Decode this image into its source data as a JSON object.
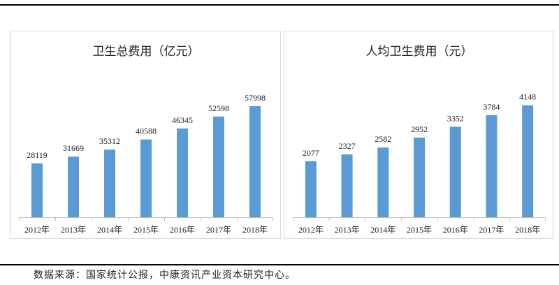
{
  "source_note": "数据来源：国家统计公报，中康资讯产业资本研究中心。",
  "colors": {
    "bar": "#5b9bd5",
    "axis": "#bfbfbf",
    "border": "#d9d9d9"
  },
  "chart_data": [
    {
      "type": "bar",
      "title": "卫生总费用（亿元）",
      "categories": [
        "2012年",
        "2013年",
        "2014年",
        "2015年",
        "2016年",
        "2017年",
        "2018年"
      ],
      "values": [
        28119,
        31669,
        35312,
        40588,
        46345,
        52598,
        57998
      ],
      "ylim": [
        0,
        62000
      ],
      "grid": false,
      "legend": "none"
    },
    {
      "type": "bar",
      "title": "人均卫生费用（元）",
      "categories": [
        "2012年",
        "2013年",
        "2014年",
        "2015年",
        "2016年",
        "2017年",
        "2018年"
      ],
      "values": [
        2077,
        2327,
        2582,
        2952,
        3352,
        3784,
        4148
      ],
      "ylim": [
        0,
        4400
      ],
      "grid": false,
      "legend": "none"
    }
  ]
}
